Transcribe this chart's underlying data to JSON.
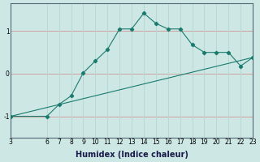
{
  "xlabel": "Humidex (Indice chaleur)",
  "bg_color": "#cde8e4",
  "grid_color": "#b8d8d4",
  "line_color": "#1a7a6e",
  "line1_x": [
    3,
    6,
    7,
    8,
    9,
    10,
    11,
    12,
    13,
    14,
    15,
    16,
    17,
    18,
    19,
    20,
    21,
    22,
    23
  ],
  "line1_y": [
    -1.0,
    -1.0,
    -0.72,
    -0.52,
    0.02,
    0.3,
    0.57,
    1.05,
    1.05,
    1.42,
    1.18,
    1.05,
    1.05,
    0.68,
    0.5,
    0.5,
    0.5,
    0.18,
    0.38
  ],
  "line2_x": [
    3,
    23
  ],
  "line2_y": [
    -1.0,
    0.38
  ],
  "xlim": [
    3,
    23
  ],
  "ylim": [
    -1.5,
    1.65
  ],
  "xticks": [
    3,
    6,
    7,
    8,
    9,
    10,
    11,
    12,
    13,
    14,
    15,
    16,
    17,
    18,
    19,
    20,
    21,
    22,
    23
  ],
  "yticks": [
    -1,
    0,
    1
  ],
  "hline_color": "#d0a0a0",
  "tick_fontsize": 5.5,
  "label_fontsize": 7,
  "label_fontweight": "bold",
  "label_color": "#1a1a4a"
}
